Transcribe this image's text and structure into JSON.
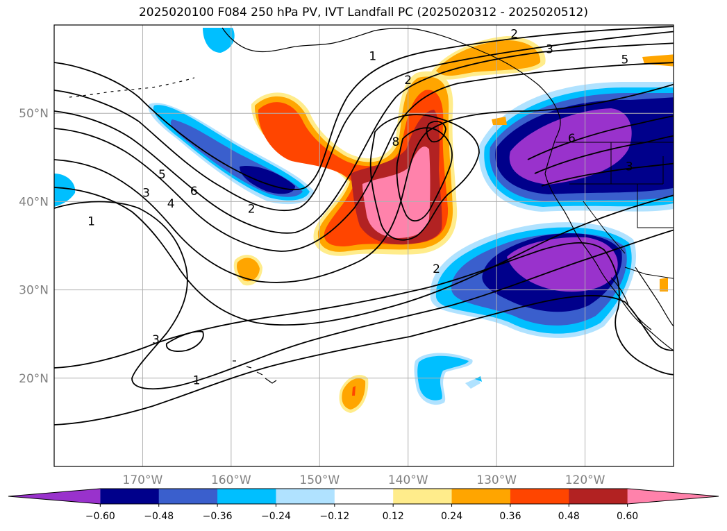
{
  "title": "2025020100 F084 250 hPa PV, IVT Landfall PC (2025020312 - 2025020512)",
  "map": {
    "lon_min": -180,
    "lon_max": -110,
    "lat_min": 10,
    "lat_max": 60,
    "lat_ticks": [
      {
        "value": 20,
        "label": "20°N"
      },
      {
        "value": 30,
        "label": "30°N"
      },
      {
        "value": 40,
        "label": "40°N"
      },
      {
        "value": 50,
        "label": "50°N"
      }
    ],
    "lon_ticks": [
      {
        "value": -170,
        "label": "170°W"
      },
      {
        "value": -160,
        "label": "160°W"
      },
      {
        "value": -150,
        "label": "150°W"
      },
      {
        "value": -140,
        "label": "140°W"
      },
      {
        "value": -130,
        "label": "130°W"
      },
      {
        "value": -120,
        "label": "120°W"
      }
    ],
    "grid": true,
    "coastline_color": "#000000",
    "contour_color": "#000000"
  },
  "colorbar": {
    "orientation": "horizontal",
    "extend": "both",
    "colors": [
      "#9932cc",
      "#00008b",
      "#3a5fcd",
      "#00bfff",
      "#b0e2ff",
      "#ffffff",
      "#ffec8b",
      "#ffa500",
      "#ff4500",
      "#b22222",
      "#ff82ab"
    ],
    "tick_labels": [
      "−0.60",
      "−0.48",
      "−0.36",
      "−0.24",
      "−0.12",
      "0.12",
      "0.24",
      "0.36",
      "0.48",
      "0.60"
    ]
  },
  "contour_labels": [
    {
      "text": "1",
      "lon": -144.0,
      "lat": 56.5
    },
    {
      "text": "2",
      "lon": -128.0,
      "lat": 59.0
    },
    {
      "text": "3",
      "lon": -124.0,
      "lat": 57.3
    },
    {
      "text": "5",
      "lon": -115.5,
      "lat": 56.1
    },
    {
      "text": "2",
      "lon": -140.0,
      "lat": 53.8
    },
    {
      "text": "8",
      "lon": -141.4,
      "lat": 46.8
    },
    {
      "text": "6",
      "lon": -121.5,
      "lat": 47.2
    },
    {
      "text": "3",
      "lon": -115.0,
      "lat": 44.0
    },
    {
      "text": "5",
      "lon": -167.8,
      "lat": 43.1
    },
    {
      "text": "6",
      "lon": -164.2,
      "lat": 41.2
    },
    {
      "text": "3",
      "lon": -169.6,
      "lat": 41.0
    },
    {
      "text": "4",
      "lon": -166.8,
      "lat": 39.8
    },
    {
      "text": "2",
      "lon": -157.7,
      "lat": 39.2
    },
    {
      "text": "1",
      "lon": -175.8,
      "lat": 37.8
    },
    {
      "text": "2",
      "lon": -136.8,
      "lat": 32.4
    },
    {
      "text": "3",
      "lon": -168.5,
      "lat": 24.4
    },
    {
      "text": "1",
      "lon": -163.9,
      "lat": 19.8
    }
  ]
}
